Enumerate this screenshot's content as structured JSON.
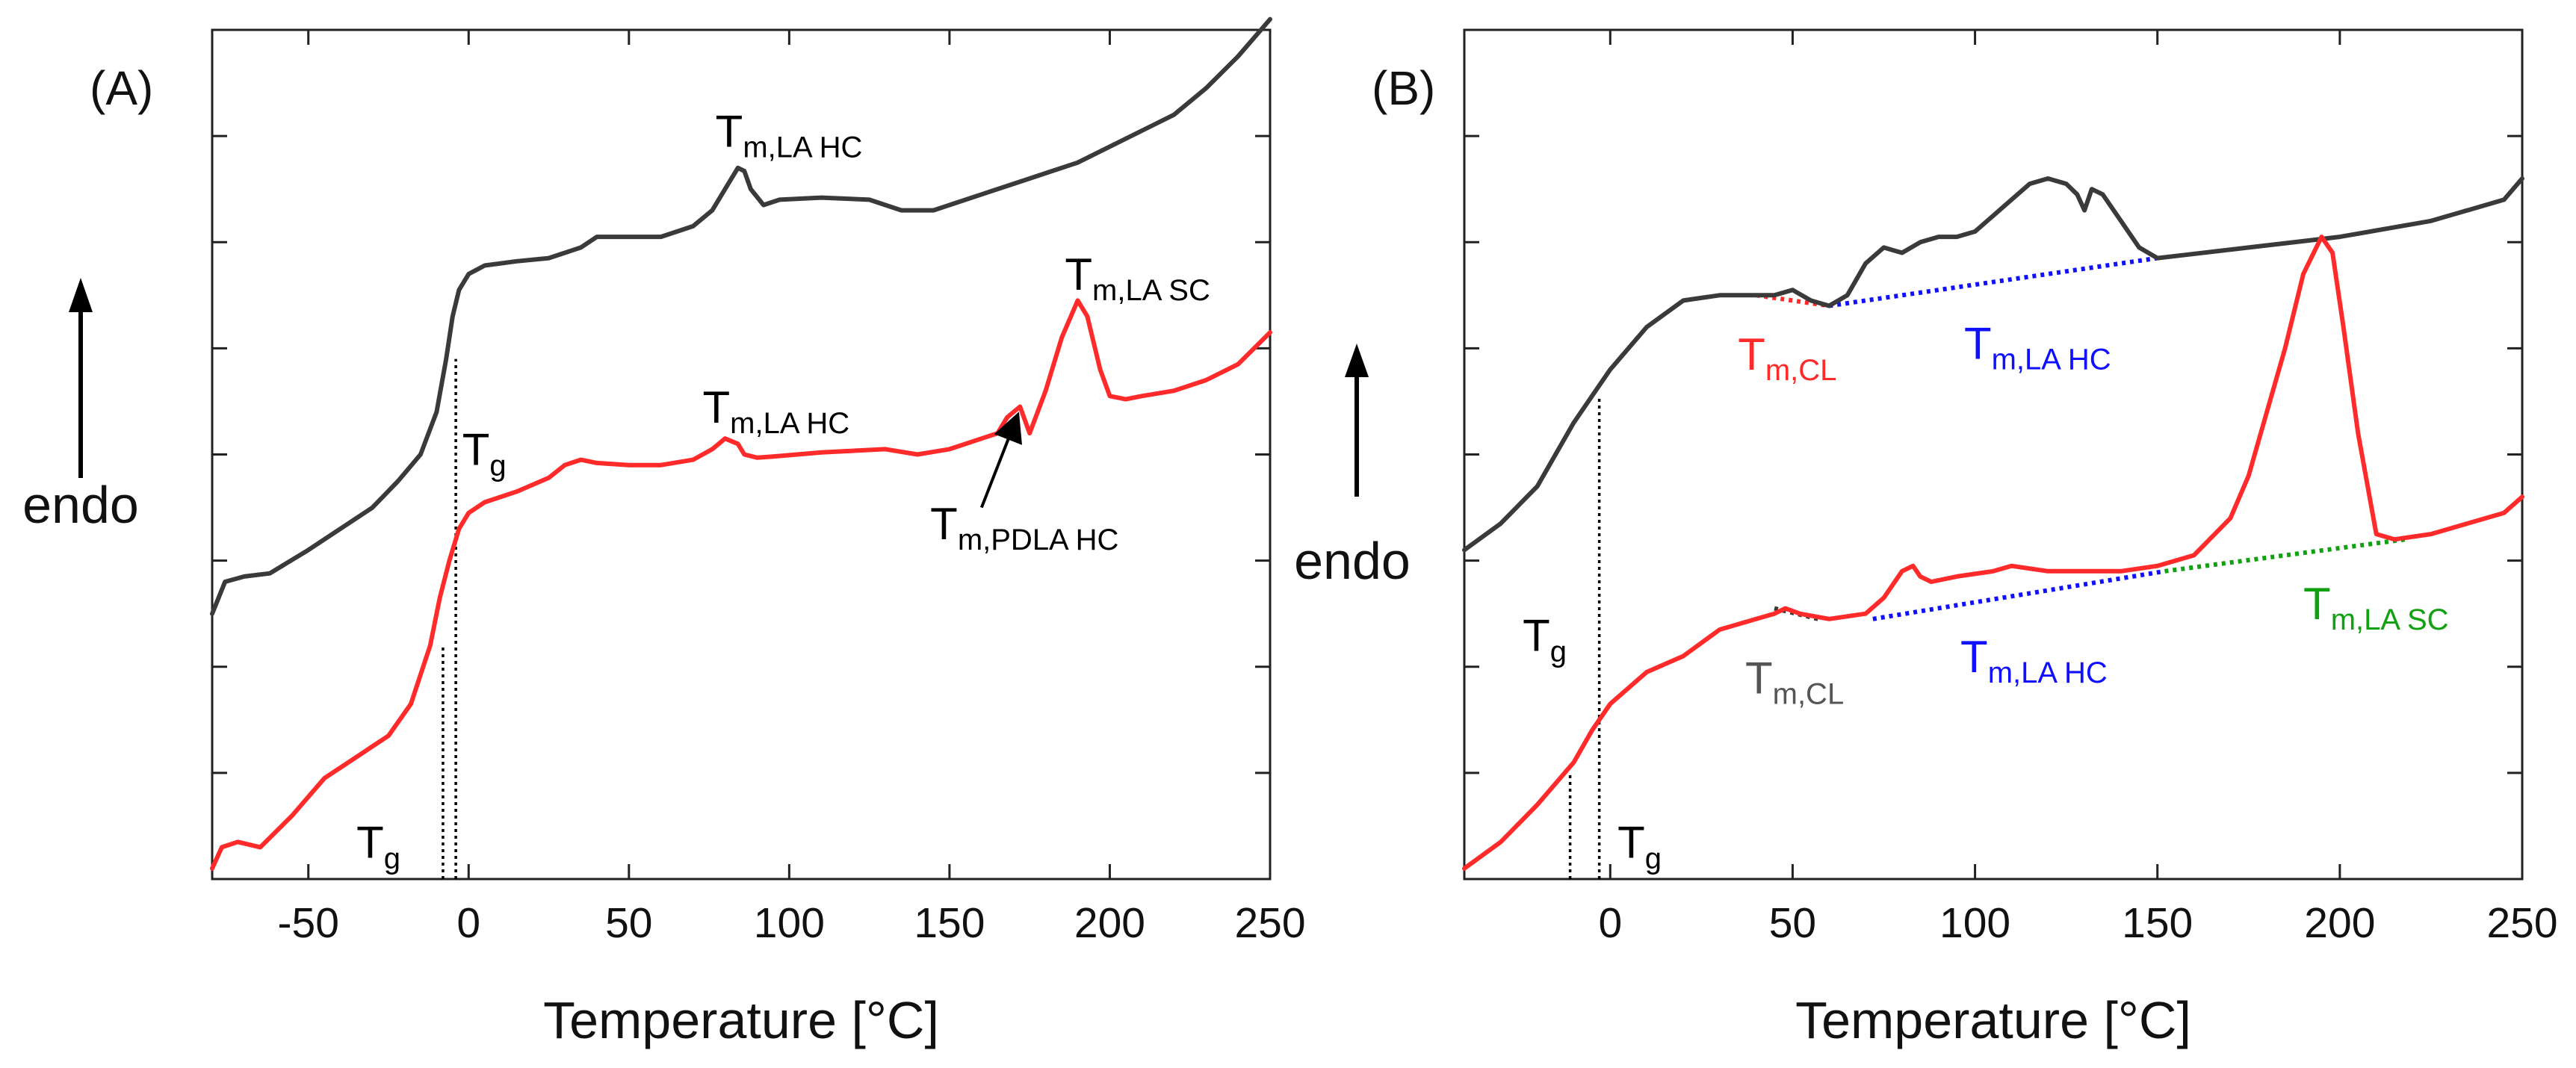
{
  "colors": {
    "dark": "#3a3a3a",
    "red": "#ff2a2a",
    "blue": "#1010ff",
    "green": "#10a010",
    "gray": "#555555",
    "black": "#000000"
  },
  "chart_data": [
    {
      "type": "line",
      "panel": "(A)",
      "xlabel": "Temperature [°C]",
      "ylabel": "endo",
      "xlim": [
        -80,
        250
      ],
      "ylim": [
        0,
        8
      ],
      "xticks": [
        -50,
        0,
        50,
        100,
        150,
        200,
        250
      ],
      "yticks": [
        1,
        2,
        3,
        4,
        5,
        6,
        7
      ],
      "series": [
        {
          "name": "upper (dark)",
          "color": "#3a3a3a",
          "x": [
            -80,
            -76,
            -70,
            -62,
            -50,
            -40,
            -30,
            -22,
            -15,
            -10,
            -7,
            -5,
            -3,
            0,
            5,
            15,
            25,
            35,
            40,
            50,
            60,
            70,
            76,
            80,
            84,
            86,
            88,
            92,
            97,
            110,
            125,
            135,
            145,
            160,
            170,
            180,
            190,
            200,
            210,
            220,
            230,
            240,
            250
          ],
          "y": [
            2.5,
            2.8,
            2.85,
            2.88,
            3.1,
            3.3,
            3.5,
            3.75,
            4.0,
            4.4,
            4.9,
            5.3,
            5.55,
            5.7,
            5.78,
            5.82,
            5.85,
            5.95,
            6.05,
            6.05,
            6.05,
            6.15,
            6.3,
            6.5,
            6.7,
            6.67,
            6.5,
            6.35,
            6.4,
            6.42,
            6.4,
            6.3,
            6.3,
            6.45,
            6.55,
            6.65,
            6.75,
            6.9,
            7.05,
            7.2,
            7.45,
            7.75,
            8.1
          ]
        },
        {
          "name": "lower (red)",
          "color": "#ff2a2a",
          "x": [
            -80,
            -77,
            -72,
            -65,
            -55,
            -45,
            -35,
            -25,
            -18,
            -12,
            -9,
            -6,
            -3,
            0,
            5,
            15,
            25,
            30,
            35,
            40,
            50,
            60,
            70,
            76,
            80,
            84,
            86,
            90,
            95,
            110,
            130,
            140,
            150,
            160,
            165,
            168,
            172,
            175,
            180,
            185,
            190,
            193,
            197,
            200,
            205,
            210,
            220,
            230,
            240,
            250
          ],
          "y": [
            0.1,
            0.3,
            0.35,
            0.3,
            0.6,
            0.95,
            1.15,
            1.35,
            1.65,
            2.2,
            2.65,
            3.0,
            3.3,
            3.45,
            3.55,
            3.65,
            3.78,
            3.9,
            3.95,
            3.92,
            3.9,
            3.9,
            3.95,
            4.05,
            4.15,
            4.1,
            4.0,
            3.97,
            3.98,
            4.02,
            4.05,
            4.0,
            4.05,
            4.15,
            4.2,
            4.35,
            4.45,
            4.2,
            4.6,
            5.1,
            5.45,
            5.3,
            4.8,
            4.55,
            4.52,
            4.55,
            4.6,
            4.7,
            4.85,
            5.15
          ]
        }
      ],
      "guides": [
        {
          "x": -4,
          "y_from": 0,
          "y_to": 4.9
        },
        {
          "x": -8,
          "y_from": 0,
          "y_to": 2.2
        }
      ],
      "annotations": [
        {
          "main": "T",
          "sub": "m,LA HC",
          "color": "#000000",
          "at": [
            77,
            6.9
          ]
        },
        {
          "main": "T",
          "sub": "m,LA SC",
          "color": "#000000",
          "at": [
            186,
            5.55
          ]
        },
        {
          "main": "T",
          "sub": "m,LA HC",
          "color": "#000000",
          "at": [
            73,
            4.3
          ]
        },
        {
          "main": "T",
          "sub": "g",
          "color": "#000000",
          "at": [
            -2,
            3.9
          ]
        },
        {
          "main": "T",
          "sub": "m,PDLA HC",
          "color": "#000000",
          "at": [
            144,
            3.2
          ]
        },
        {
          "main": "T",
          "sub": "g",
          "color": "#000000",
          "at": [
            -35,
            0.2
          ]
        }
      ],
      "arrow": {
        "from": [
          160,
          3.5
        ],
        "to": [
          171,
          4.35
        ]
      }
    },
    {
      "type": "line",
      "panel": "(B)",
      "xlabel": "Temperature [°C]",
      "ylabel": "endo",
      "xlim": [
        -40,
        250
      ],
      "ylim": [
        0,
        8
      ],
      "xticks": [
        0,
        50,
        100,
        150,
        200,
        250
      ],
      "yticks": [
        1,
        2,
        3,
        4,
        5,
        6,
        7
      ],
      "series": [
        {
          "name": "upper (dark)",
          "color": "#3a3a3a",
          "x": [
            -40,
            -30,
            -20,
            -10,
            -5,
            0,
            10,
            20,
            30,
            40,
            45,
            50,
            55,
            60,
            65,
            70,
            75,
            80,
            85,
            90,
            95,
            100,
            105,
            110,
            115,
            120,
            125,
            128,
            130,
            132,
            135,
            140,
            145,
            150,
            175,
            200,
            225,
            245,
            250
          ],
          "y": [
            3.1,
            3.35,
            3.7,
            4.3,
            4.55,
            4.8,
            5.2,
            5.45,
            5.5,
            5.5,
            5.5,
            5.55,
            5.45,
            5.4,
            5.5,
            5.8,
            5.95,
            5.9,
            6.0,
            6.05,
            6.05,
            6.1,
            6.25,
            6.4,
            6.55,
            6.6,
            6.55,
            6.45,
            6.3,
            6.5,
            6.45,
            6.2,
            5.95,
            5.85,
            5.95,
            6.05,
            6.2,
            6.4,
            6.6
          ]
        },
        {
          "name": "lower (red)",
          "color": "#ff2a2a",
          "x": [
            -40,
            -30,
            -20,
            -10,
            -5,
            0,
            10,
            20,
            30,
            40,
            45,
            48,
            52,
            60,
            70,
            75,
            80,
            83,
            85,
            88,
            95,
            105,
            110,
            120,
            140,
            150,
            160,
            170,
            175,
            180,
            185,
            190,
            195,
            198,
            201,
            205,
            210,
            215,
            225,
            235,
            245,
            250
          ],
          "y": [
            0.1,
            0.35,
            0.7,
            1.1,
            1.4,
            1.65,
            1.95,
            2.1,
            2.35,
            2.45,
            2.5,
            2.55,
            2.5,
            2.45,
            2.5,
            2.65,
            2.9,
            2.95,
            2.85,
            2.8,
            2.85,
            2.9,
            2.95,
            2.9,
            2.9,
            2.95,
            3.05,
            3.4,
            3.8,
            4.4,
            5.0,
            5.7,
            6.05,
            5.9,
            5.2,
            4.2,
            3.25,
            3.2,
            3.25,
            3.35,
            3.45,
            3.6
          ]
        }
      ],
      "baselines": [
        {
          "color": "#ff2a2a",
          "x": [
            40,
            60
          ],
          "y": [
            5.5,
            5.4
          ]
        },
        {
          "color": "#1010ff",
          "x": [
            60,
            150
          ],
          "y": [
            5.4,
            5.85
          ]
        },
        {
          "color": "#3a3a3a",
          "x": [
            45,
            57
          ],
          "y": [
            2.55,
            2.45
          ]
        },
        {
          "color": "#1010ff",
          "x": [
            72,
            152
          ],
          "y": [
            2.45,
            2.9
          ]
        },
        {
          "color": "#10a010",
          "x": [
            152,
            218
          ],
          "y": [
            2.9,
            3.2
          ]
        }
      ],
      "guides": [
        {
          "x": -3,
          "y_from": 0,
          "y_to": 4.55
        },
        {
          "x": -11,
          "y_from": 0,
          "y_to": 1.0
        }
      ],
      "annotations": [
        {
          "main": "T",
          "sub": "m,CL",
          "color": "#ff2a2a",
          "at": [
            35,
            4.8
          ]
        },
        {
          "main": "T",
          "sub": "m,LA HC",
          "color": "#1010ff",
          "at": [
            97,
            4.9
          ]
        },
        {
          "main": "T",
          "sub": "g",
          "color": "#000000",
          "at": [
            -24,
            2.15
          ]
        },
        {
          "main": "T",
          "sub": "m,CL",
          "color": "#555555",
          "at": [
            37,
            1.75
          ]
        },
        {
          "main": "T",
          "sub": "m,LA HC",
          "color": "#1010ff",
          "at": [
            96,
            1.95
          ]
        },
        {
          "main": "T",
          "sub": "m,LA SC",
          "color": "#10a010",
          "at": [
            190,
            2.45
          ]
        },
        {
          "main": "T",
          "sub": "g",
          "color": "#000000",
          "at": [
            2,
            0.2
          ]
        }
      ]
    }
  ]
}
